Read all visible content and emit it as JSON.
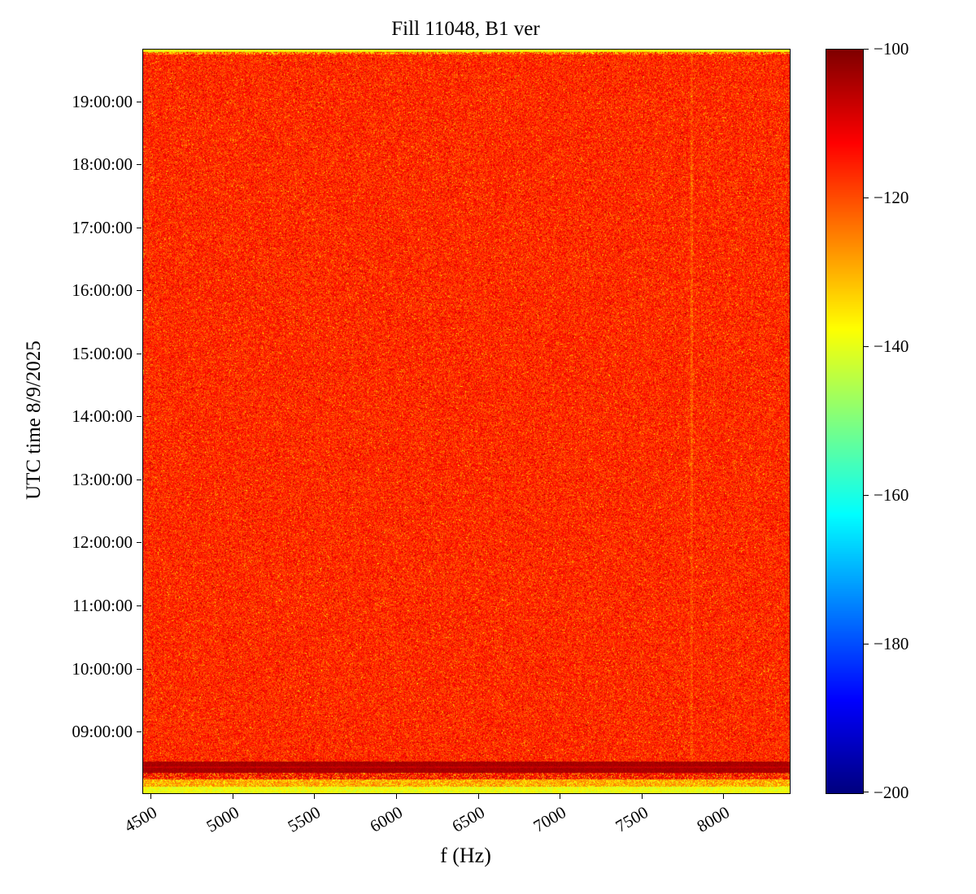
{
  "figure": {
    "background": "#ffffff",
    "frame_color": "#000000"
  },
  "chart_data": {
    "type": "heatmap",
    "title": "Fill 11048, B1 ver",
    "xlabel": "f (Hz)",
    "ylabel": "UTC time 8/9/2025",
    "x_axis": {
      "ticks": [
        4500,
        5000,
        5500,
        6000,
        6500,
        7000,
        7500,
        8000
      ],
      "range": [
        4450,
        8400
      ],
      "unit": "Hz",
      "tick_rotation_deg": 30
    },
    "y_axis": {
      "ticks": [
        "09:00:00",
        "10:00:00",
        "11:00:00",
        "12:00:00",
        "13:00:00",
        "14:00:00",
        "15:00:00",
        "16:00:00",
        "17:00:00",
        "18:00:00",
        "19:00:00"
      ],
      "range": [
        "08:02:00",
        "19:50:00"
      ],
      "date": "8/9/2025"
    },
    "colorbar": {
      "ticks": [
        -100,
        -120,
        -140,
        -160,
        -180,
        -200
      ],
      "range": [
        -200,
        -100
      ],
      "colormap": "jet",
      "position": "right"
    },
    "content": {
      "description": "Spectrogram-style heatmap of broadband noise; mostly red-orange around -115 to -120 dB",
      "background_mean_db": -116.5,
      "background_noise_sd_db": 4,
      "top_edge_band": {
        "location": "very top rows (~19:48-19:50)",
        "approx_db": -138
      },
      "bottom_dark_band": {
        "location": "~08:25-08:30",
        "approx_db": -104
      },
      "bottom_edge_band": {
        "location": "~08:02-08:12",
        "approx_db": -139
      },
      "faint_dark_column_hz": 7800
    }
  }
}
